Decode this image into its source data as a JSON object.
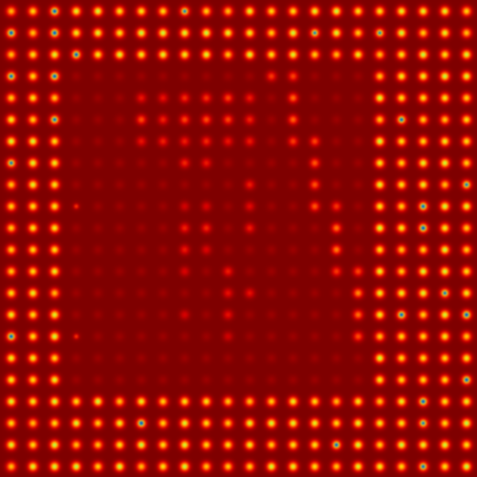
{
  "image": {
    "kind": "false-color intensity map",
    "description_visible": "",
    "colormap": "jet",
    "background_color": "#7f0000",
    "grid": {
      "columns": 22,
      "rows": 22
    },
    "palette": {
      "low": "#7f0000",
      "mid": "#ff3d00",
      "high": "#ffd000",
      "peak": "#00a8ff"
    },
    "visible_text": ""
  }
}
